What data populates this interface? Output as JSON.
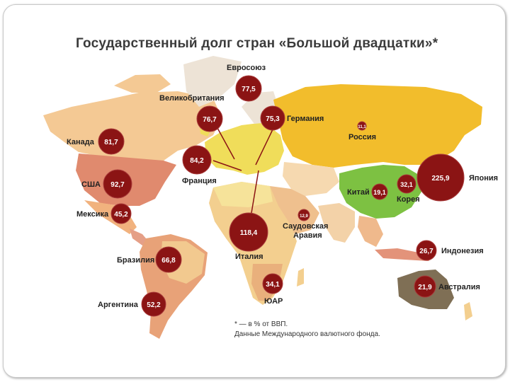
{
  "title": "Государственный долг стран «Большой двадцатки»*",
  "footnote": {
    "line1": "* — в % от ВВП.",
    "line2": "Данные Международного валютного фонда."
  },
  "colors": {
    "bubble": "#8b1414",
    "bubble_stroke": "#a83a3a",
    "russia": "#f2bd2c",
    "china": "#7dc142",
    "australia": "#7f6f55",
    "europe_yellow": "#f0dd5a"
  },
  "countries": [
    {
      "id": "evrosoyuz",
      "name": "Евросоюз",
      "value": "77,5"
    },
    {
      "id": "velikobritania",
      "name": "Великобритания",
      "value": "76,7"
    },
    {
      "id": "germania",
      "name": "Германия",
      "value": "75,3"
    },
    {
      "id": "rossia",
      "name": "Россия",
      "value": "11,1"
    },
    {
      "id": "kanada",
      "name": "Канада",
      "value": "81,7"
    },
    {
      "id": "francia",
      "name": "Франция",
      "value": "84,2"
    },
    {
      "id": "yaponia",
      "name": "Япония",
      "value": "225,9"
    },
    {
      "id": "kitai",
      "name": "Китай",
      "value": "19,1"
    },
    {
      "id": "korea",
      "name": "Корея",
      "value": "32,1"
    },
    {
      "id": "ssha",
      "name": "США",
      "value": "92,7"
    },
    {
      "id": "meksika",
      "name": "Мексика",
      "value": "45,2"
    },
    {
      "id": "saudi",
      "name": "Саудовская Аравия",
      "name_line1": "Саудовская",
      "name_line2": "Аравия",
      "value": "12,9"
    },
    {
      "id": "italia",
      "name": "Италия",
      "value": "118,4"
    },
    {
      "id": "indonezia",
      "name": "Индонезия",
      "value": "26,7"
    },
    {
      "id": "brazilia",
      "name": "Бразилия",
      "value": "66,8"
    },
    {
      "id": "avstralia",
      "name": "Австралия",
      "value": "21,9"
    },
    {
      "id": "yuar",
      "name": "ЮАР",
      "value": "34,1"
    },
    {
      "id": "argentina",
      "name": "Аргентина",
      "value": "52,2"
    }
  ]
}
